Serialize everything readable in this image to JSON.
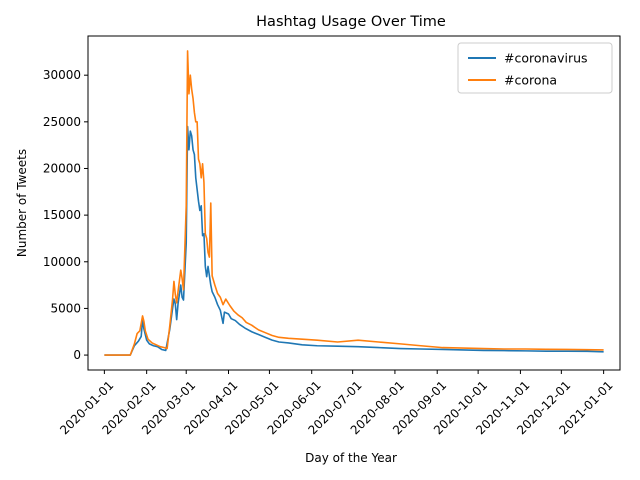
{
  "chart_data": {
    "type": "line",
    "title": "Hashtag Usage Over Time",
    "xlabel": "Day of the Year",
    "ylabel": "Number of Tweets",
    "xlim": [
      "2019-12-20",
      "2021-01-13"
    ],
    "ylim": [
      -1600,
      34200
    ],
    "x_ticks": [
      "2020-01-01",
      "2020-02-01",
      "2020-03-01",
      "2020-04-01",
      "2020-05-01",
      "2020-06-01",
      "2020-07-01",
      "2020-08-01",
      "2020-09-01",
      "2020-10-01",
      "2020-11-01",
      "2020-12-01",
      "2021-01-01"
    ],
    "y_ticks": [
      0,
      5000,
      10000,
      15000,
      20000,
      25000,
      30000
    ],
    "y_tick_labels": [
      "0",
      "5000",
      "10000",
      "15000",
      "20000",
      "25000",
      "30000"
    ],
    "grid": false,
    "legend_position": "top-right",
    "series": [
      {
        "name": "#coronavirus",
        "color": "#1f77b4",
        "points": [
          [
            "2020-01-01",
            0
          ],
          [
            "2020-01-20",
            0
          ],
          [
            "2020-01-23",
            1000
          ],
          [
            "2020-01-26",
            1500
          ],
          [
            "2020-01-28",
            2000
          ],
          [
            "2020-01-29",
            3800
          ],
          [
            "2020-01-30",
            2800
          ],
          [
            "2020-02-01",
            1600
          ],
          [
            "2020-02-03",
            1200
          ],
          [
            "2020-02-06",
            1000
          ],
          [
            "2020-02-09",
            900
          ],
          [
            "2020-02-12",
            600
          ],
          [
            "2020-02-15",
            500
          ],
          [
            "2020-02-18",
            2800
          ],
          [
            "2020-02-20",
            5000
          ],
          [
            "2020-02-21",
            6000
          ],
          [
            "2020-02-22",
            5500
          ],
          [
            "2020-02-23",
            3800
          ],
          [
            "2020-02-24",
            5500
          ],
          [
            "2020-02-26",
            7500
          ],
          [
            "2020-02-27",
            6200
          ],
          [
            "2020-02-28",
            5900
          ],
          [
            "2020-03-01",
            12000
          ],
          [
            "2020-03-02",
            24500
          ],
          [
            "2020-03-03",
            22000
          ],
          [
            "2020-03-04",
            24000
          ],
          [
            "2020-03-05",
            23500
          ],
          [
            "2020-03-06",
            22000
          ],
          [
            "2020-03-07",
            21500
          ],
          [
            "2020-03-08",
            19000
          ],
          [
            "2020-03-10",
            16500
          ],
          [
            "2020-03-11",
            15500
          ],
          [
            "2020-03-12",
            16000
          ],
          [
            "2020-03-13",
            12800
          ],
          [
            "2020-03-14",
            13000
          ],
          [
            "2020-03-15",
            9500
          ],
          [
            "2020-03-16",
            8400
          ],
          [
            "2020-03-17",
            9500
          ],
          [
            "2020-03-18",
            8500
          ],
          [
            "2020-03-19",
            7500
          ],
          [
            "2020-03-20",
            6800
          ],
          [
            "2020-03-22",
            6200
          ],
          [
            "2020-03-24",
            5400
          ],
          [
            "2020-03-26",
            4800
          ],
          [
            "2020-03-28",
            3400
          ],
          [
            "2020-03-29",
            4600
          ],
          [
            "2020-04-01",
            4400
          ],
          [
            "2020-04-03",
            3900
          ],
          [
            "2020-04-06",
            3700
          ],
          [
            "2020-04-09",
            3300
          ],
          [
            "2020-04-13",
            2900
          ],
          [
            "2020-04-18",
            2500
          ],
          [
            "2020-04-23",
            2200
          ],
          [
            "2020-04-28",
            1900
          ],
          [
            "2020-05-03",
            1600
          ],
          [
            "2020-05-08",
            1400
          ],
          [
            "2020-05-15",
            1300
          ],
          [
            "2020-05-25",
            1100
          ],
          [
            "2020-06-05",
            1000
          ],
          [
            "2020-06-20",
            950
          ],
          [
            "2020-07-05",
            900
          ],
          [
            "2020-07-20",
            800
          ],
          [
            "2020-08-05",
            700
          ],
          [
            "2020-08-20",
            650
          ],
          [
            "2020-09-05",
            600
          ],
          [
            "2020-09-20",
            550
          ],
          [
            "2020-10-05",
            500
          ],
          [
            "2020-10-20",
            480
          ],
          [
            "2020-11-05",
            450
          ],
          [
            "2020-11-20",
            420
          ],
          [
            "2020-12-05",
            420
          ],
          [
            "2020-12-20",
            400
          ],
          [
            "2021-01-01",
            350
          ]
        ]
      },
      {
        "name": "#corona",
        "color": "#ff7f0e",
        "points": [
          [
            "2020-01-01",
            0
          ],
          [
            "2020-01-20",
            0
          ],
          [
            "2020-01-23",
            1200
          ],
          [
            "2020-01-25",
            2300
          ],
          [
            "2020-01-27",
            2600
          ],
          [
            "2020-01-29",
            4200
          ],
          [
            "2020-01-30",
            3600
          ],
          [
            "2020-01-31",
            2600
          ],
          [
            "2020-02-02",
            1700
          ],
          [
            "2020-02-05",
            1300
          ],
          [
            "2020-02-08",
            1100
          ],
          [
            "2020-02-11",
            900
          ],
          [
            "2020-02-14",
            800
          ],
          [
            "2020-02-16",
            700
          ],
          [
            "2020-02-18",
            3200
          ],
          [
            "2020-02-20",
            6000
          ],
          [
            "2020-02-21",
            7900
          ],
          [
            "2020-02-22",
            6500
          ],
          [
            "2020-02-23",
            5600
          ],
          [
            "2020-02-24",
            6800
          ],
          [
            "2020-02-26",
            9100
          ],
          [
            "2020-02-27",
            8200
          ],
          [
            "2020-02-28",
            7000
          ],
          [
            "2020-03-01",
            16000
          ],
          [
            "2020-03-02",
            32600
          ],
          [
            "2020-03-03",
            28000
          ],
          [
            "2020-03-04",
            30000
          ],
          [
            "2020-03-05",
            28500
          ],
          [
            "2020-03-06",
            27500
          ],
          [
            "2020-03-07",
            26000
          ],
          [
            "2020-03-08",
            25000
          ],
          [
            "2020-03-09",
            25000
          ],
          [
            "2020-03-10",
            21000
          ],
          [
            "2020-03-11",
            20500
          ],
          [
            "2020-03-12",
            19000
          ],
          [
            "2020-03-13",
            20500
          ],
          [
            "2020-03-14",
            18500
          ],
          [
            "2020-03-15",
            13000
          ],
          [
            "2020-03-16",
            12500
          ],
          [
            "2020-03-17",
            11000
          ],
          [
            "2020-03-18",
            10500
          ],
          [
            "2020-03-19",
            16300
          ],
          [
            "2020-03-20",
            8500
          ],
          [
            "2020-03-22",
            7500
          ],
          [
            "2020-03-24",
            6600
          ],
          [
            "2020-03-26",
            6200
          ],
          [
            "2020-03-28",
            5400
          ],
          [
            "2020-03-30",
            6000
          ],
          [
            "2020-04-02",
            5300
          ],
          [
            "2020-04-05",
            4700
          ],
          [
            "2020-04-08",
            4300
          ],
          [
            "2020-04-11",
            4000
          ],
          [
            "2020-04-14",
            3500
          ],
          [
            "2020-04-18",
            3200
          ],
          [
            "2020-04-23",
            2700
          ],
          [
            "2020-04-28",
            2400
          ],
          [
            "2020-05-03",
            2100
          ],
          [
            "2020-05-08",
            1900
          ],
          [
            "2020-05-15",
            1800
          ],
          [
            "2020-05-25",
            1700
          ],
          [
            "2020-06-05",
            1600
          ],
          [
            "2020-06-20",
            1400
          ],
          [
            "2020-07-05",
            1600
          ],
          [
            "2020-07-20",
            1400
          ],
          [
            "2020-08-05",
            1200
          ],
          [
            "2020-08-20",
            1000
          ],
          [
            "2020-09-05",
            800
          ],
          [
            "2020-09-20",
            750
          ],
          [
            "2020-10-05",
            700
          ],
          [
            "2020-10-20",
            650
          ],
          [
            "2020-11-05",
            650
          ],
          [
            "2020-11-20",
            620
          ],
          [
            "2020-12-05",
            600
          ],
          [
            "2020-12-20",
            580
          ],
          [
            "2021-01-01",
            550
          ]
        ]
      }
    ]
  }
}
